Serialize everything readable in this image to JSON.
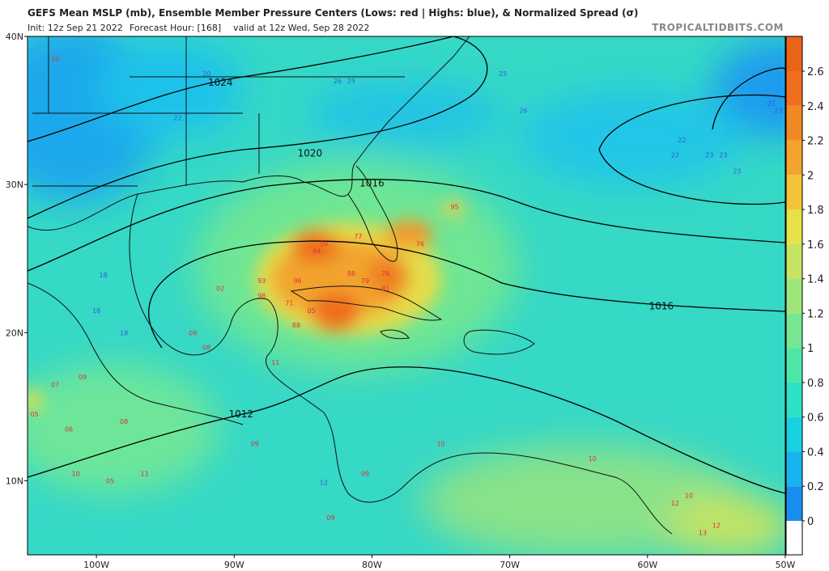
{
  "header": {
    "title": "GEFS Mean MSLP (mb), Ensemble Member Pressure Centers (Lows: red | Highs: blue), & Normalized Spread (σ)",
    "init": "Init: 12z Sep 21 2022",
    "forecast_hour": "Forecast Hour: [168]",
    "valid": "valid at 12z Wed, Sep 28 2022",
    "site": "TROPICALTIDBITS.COM"
  },
  "map": {
    "lon_range": [
      -105,
      -50
    ],
    "lat_range": [
      5,
      40
    ],
    "lat_ticks": [
      {
        "value": 10,
        "label": "10N"
      },
      {
        "value": 20,
        "label": "20N"
      },
      {
        "value": 30,
        "label": "30N"
      },
      {
        "value": 40,
        "label": "40N"
      }
    ],
    "lon_ticks": [
      {
        "value": -100,
        "label": "100W"
      },
      {
        "value": -90,
        "label": "90W"
      },
      {
        "value": -80,
        "label": "80W"
      },
      {
        "value": -70,
        "label": "70W"
      },
      {
        "value": -60,
        "label": "60W"
      },
      {
        "value": -50,
        "label": "50W"
      }
    ],
    "isobar_labels": [
      {
        "label": "1024",
        "lon": -91.0,
        "lat": 36.9
      },
      {
        "label": "1020",
        "lon": -84.5,
        "lat": 32.1
      },
      {
        "label": "1016",
        "lon": -80.0,
        "lat": 30.1
      },
      {
        "label": "1016",
        "lon": -59.0,
        "lat": 21.8
      },
      {
        "label": "1012",
        "lon": -89.5,
        "lat": 14.5
      }
    ],
    "highs": {
      "color": "#2a5fd6",
      "centers": [
        {
          "label": "25",
          "lon": -70.5,
          "lat": 37.5
        },
        {
          "label": "26",
          "lon": -69.0,
          "lat": 35.0
        },
        {
          "label": "22",
          "lon": -57.5,
          "lat": 33.0
        },
        {
          "label": "22",
          "lon": -58.0,
          "lat": 32.0
        },
        {
          "label": "23",
          "lon": -55.5,
          "lat": 32.0
        },
        {
          "label": "23",
          "lon": -54.5,
          "lat": 32.0
        },
        {
          "label": "23",
          "lon": -53.5,
          "lat": 30.9
        },
        {
          "label": "21",
          "lon": -51.0,
          "lat": 35.5
        },
        {
          "label": "23",
          "lon": -50.5,
          "lat": 35.0
        },
        {
          "label": "20",
          "lon": -92.0,
          "lat": 37.5
        },
        {
          "label": "22",
          "lon": -94.1,
          "lat": 34.5
        },
        {
          "label": "18",
          "lon": -99.5,
          "lat": 23.9
        },
        {
          "label": "18",
          "lon": -100.0,
          "lat": 21.5
        },
        {
          "label": "18",
          "lon": -98.0,
          "lat": 20.0
        },
        {
          "label": "26",
          "lon": -82.5,
          "lat": 37.0
        },
        {
          "label": "25",
          "lon": -81.5,
          "lat": 37.0
        },
        {
          "label": "12",
          "lon": -83.5,
          "lat": 9.9
        }
      ]
    },
    "lows": {
      "color": "#e0303a",
      "centers": [
        {
          "label": "95",
          "lon": -74.0,
          "lat": 28.5
        },
        {
          "label": "59",
          "lon": -83.5,
          "lat": 26.0
        },
        {
          "label": "64",
          "lon": -84.0,
          "lat": 25.5
        },
        {
          "label": "77",
          "lon": -81.0,
          "lat": 26.5
        },
        {
          "label": "76",
          "lon": -76.5,
          "lat": 26.0
        },
        {
          "label": "88",
          "lon": -81.5,
          "lat": 24.0
        },
        {
          "label": "79",
          "lon": -80.5,
          "lat": 23.5
        },
        {
          "label": "76",
          "lon": -79.0,
          "lat": 24.0
        },
        {
          "label": "81",
          "lon": -79.0,
          "lat": 23.0
        },
        {
          "label": "93",
          "lon": -88.0,
          "lat": 23.5
        },
        {
          "label": "96",
          "lon": -85.4,
          "lat": 23.5
        },
        {
          "label": "98",
          "lon": -88.0,
          "lat": 22.5
        },
        {
          "label": "71",
          "lon": -86.0,
          "lat": 22.0
        },
        {
          "label": "05",
          "lon": -84.4,
          "lat": 21.5
        },
        {
          "label": "88",
          "lon": -85.5,
          "lat": 20.5
        },
        {
          "label": "02",
          "lon": -91.0,
          "lat": 23.0
        },
        {
          "label": "08",
          "lon": -93.0,
          "lat": 20.0
        },
        {
          "label": "08",
          "lon": -92.0,
          "lat": 19.0
        },
        {
          "label": "11",
          "lon": -87.0,
          "lat": 18.0
        },
        {
          "label": "09",
          "lon": -88.5,
          "lat": 12.5
        },
        {
          "label": "08",
          "lon": -98.0,
          "lat": 14.0
        },
        {
          "label": "05",
          "lon": -104.5,
          "lat": 14.5
        },
        {
          "label": "10",
          "lon": -103.0,
          "lat": 38.5
        },
        {
          "label": "07",
          "lon": -103.0,
          "lat": 16.5
        },
        {
          "label": "06",
          "lon": -102.0,
          "lat": 13.5
        },
        {
          "label": "09",
          "lon": -101.0,
          "lat": 17.0
        },
        {
          "label": "10",
          "lon": -101.5,
          "lat": 10.5
        },
        {
          "label": "11",
          "lon": -96.5,
          "lat": 10.5
        },
        {
          "label": "05",
          "lon": -99.0,
          "lat": 10.0
        },
        {
          "label": "09",
          "lon": -80.5,
          "lat": 10.5
        },
        {
          "label": "10",
          "lon": -64.0,
          "lat": 11.5
        },
        {
          "label": "10",
          "lon": -57.0,
          "lat": 9.0
        },
        {
          "label": "12",
          "lon": -58.0,
          "lat": 8.5
        },
        {
          "label": "12",
          "lon": -55.0,
          "lat": 7.0
        },
        {
          "label": "13",
          "lon": -56.0,
          "lat": 6.5
        },
        {
          "label": "09",
          "lon": -83.0,
          "lat": 7.5
        },
        {
          "label": "10",
          "lon": -75.0,
          "lat": 12.5
        }
      ]
    }
  },
  "colorbar": {
    "ticks": [
      0,
      0.2,
      0.4,
      0.6,
      0.8,
      1,
      1.2,
      1.4,
      1.6,
      1.8,
      2,
      2.2,
      2.4,
      2.6
    ],
    "colors": [
      "#ffffff",
      "#1a8ef0",
      "#16b4ee",
      "#18d2e2",
      "#2ee0c4",
      "#4ee6a6",
      "#76e690",
      "#9ee67a",
      "#c4e462",
      "#e6e04a",
      "#f2c43a",
      "#f4a42e",
      "#f28824",
      "#ee6e1e"
    ]
  }
}
